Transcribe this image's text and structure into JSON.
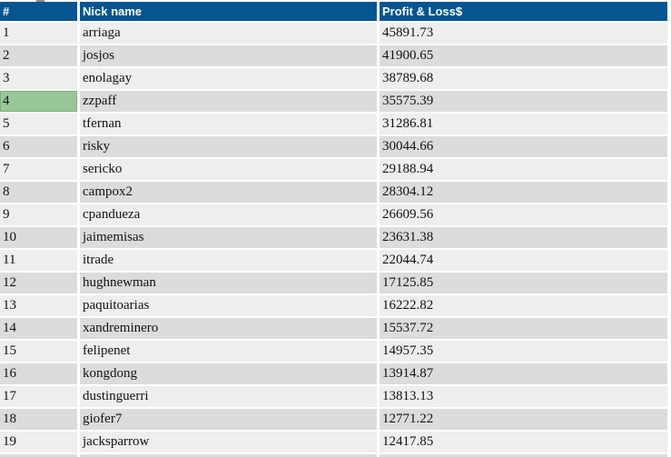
{
  "table": {
    "columns": [
      {
        "key": "rank",
        "label": "#"
      },
      {
        "key": "nick",
        "label": "Nick name"
      },
      {
        "key": "pnl",
        "label": "Profit & Loss$"
      }
    ],
    "rows": [
      {
        "rank": "1",
        "nick": "arriaga",
        "pnl": "45891.73",
        "highlight": false
      },
      {
        "rank": "2",
        "nick": "josjos",
        "pnl": "41900.65",
        "highlight": false
      },
      {
        "rank": "3",
        "nick": "enolagay",
        "pnl": "38789.68",
        "highlight": false
      },
      {
        "rank": "4",
        "nick": "zzpaff",
        "pnl": "35575.39",
        "highlight": true
      },
      {
        "rank": "5",
        "nick": "tfernan",
        "pnl": "31286.81",
        "highlight": false
      },
      {
        "rank": "6",
        "nick": "risky",
        "pnl": "30044.66",
        "highlight": false
      },
      {
        "rank": "7",
        "nick": "sericko",
        "pnl": "29188.94",
        "highlight": false
      },
      {
        "rank": "8",
        "nick": "campox2",
        "pnl": "28304.12",
        "highlight": false
      },
      {
        "rank": "9",
        "nick": "cpandueza",
        "pnl": "26609.56",
        "highlight": false
      },
      {
        "rank": "10",
        "nick": "jaimemisas",
        "pnl": "23631.38",
        "highlight": false
      },
      {
        "rank": "11",
        "nick": "itrade",
        "pnl": "22044.74",
        "highlight": false
      },
      {
        "rank": "12",
        "nick": "hughnewman",
        "pnl": "17125.85",
        "highlight": false
      },
      {
        "rank": "13",
        "nick": "paquitoarias",
        "pnl": "16222.82",
        "highlight": false
      },
      {
        "rank": "14",
        "nick": "xandreminero",
        "pnl": "15537.72",
        "highlight": false
      },
      {
        "rank": "15",
        "nick": "felipenet",
        "pnl": "14957.35",
        "highlight": false
      },
      {
        "rank": "16",
        "nick": "kongdong",
        "pnl": "13914.87",
        "highlight": false
      },
      {
        "rank": "17",
        "nick": "dustinguerri",
        "pnl": "13813.13",
        "highlight": false
      },
      {
        "rank": "18",
        "nick": "giofer7",
        "pnl": "12771.22",
        "highlight": false
      },
      {
        "rank": "19",
        "nick": "jacksparrow",
        "pnl": "12417.85",
        "highlight": false
      }
    ]
  },
  "colors": {
    "header_bg": "#075590",
    "header_text": "#ffffff",
    "row_light": "#eeeeee",
    "row_dark": "#dcdcdc",
    "highlight_bg": "#97c697",
    "highlight_border": "#79af79"
  }
}
